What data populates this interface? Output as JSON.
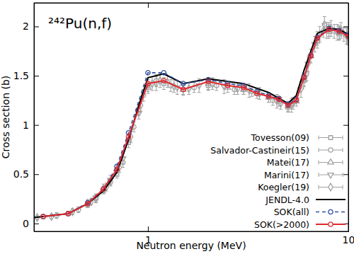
{
  "chart_data": {
    "type": "scatter",
    "title": "²⁴²Pu(n,f)",
    "x_label": "Neutron energy (MeV)",
    "y_label": "Cross section (b)",
    "log": "x",
    "legend": "lower right",
    "xlim": [
      0.27,
      10
    ],
    "ylim": [
      -0.08,
      2.24
    ],
    "xticks": [
      1,
      10
    ],
    "yticks": [
      0,
      0.5,
      1,
      1.5,
      2
    ],
    "series": [
      {
        "name": "Tovesson(09)",
        "color": "#a0a0a0",
        "type": "scatter",
        "marker": "square",
        "line_style": "none",
        "x": [
          0.3,
          0.4,
          0.5,
          0.6,
          0.7,
          0.8,
          0.9,
          1.0,
          1.2,
          1.5,
          2,
          3,
          4,
          5,
          6,
          7,
          8,
          9,
          10
        ],
        "values": [
          0.07,
          0.1,
          0.19,
          0.33,
          0.5,
          0.82,
          1.15,
          1.4,
          1.42,
          1.36,
          1.4,
          1.36,
          1.28,
          1.18,
          1.45,
          1.85,
          1.95,
          1.93,
          1.88
        ],
        "errors": [
          0.02,
          0.02,
          0.03,
          0.03,
          0.04,
          0.05,
          0.05,
          0.06,
          0.06,
          0.05,
          0.05,
          0.05,
          0.05,
          0.05,
          0.06,
          0.07,
          0.07,
          0.07,
          0.07
        ]
      },
      {
        "name": "Salvador-Castineir(15)",
        "color": "#a0a0a0",
        "type": "scatter",
        "marker": "circle",
        "line_style": "none",
        "x": [
          0.35,
          0.45,
          0.55,
          0.65,
          0.75,
          0.85,
          0.95,
          1.1,
          1.3,
          1.7,
          2.2,
          2.7,
          3.3,
          4.2
        ],
        "values": [
          0.08,
          0.14,
          0.25,
          0.42,
          0.62,
          0.98,
          1.3,
          1.45,
          1.4,
          1.38,
          1.4,
          1.36,
          1.34,
          1.25
        ],
        "errors": [
          0.03,
          0.03,
          0.04,
          0.04,
          0.05,
          0.05,
          0.06,
          0.06,
          0.06,
          0.05,
          0.05,
          0.05,
          0.05,
          0.05
        ]
      },
      {
        "name": "Matei(17)",
        "color": "#a0a0a0",
        "type": "scatter",
        "marker": "triangle",
        "line_style": "none",
        "x": [
          0.5,
          0.6,
          0.7,
          0.8,
          1.0,
          1.25,
          1.5,
          2,
          2.5,
          3,
          3.5,
          4,
          4.5,
          5,
          5.5,
          6,
          6.5,
          7,
          7.5,
          8,
          8.5,
          9,
          9.5
        ],
        "values": [
          0.21,
          0.36,
          0.55,
          0.85,
          1.38,
          1.44,
          1.36,
          1.42,
          1.38,
          1.36,
          1.32,
          1.28,
          1.24,
          1.19,
          1.24,
          1.46,
          1.7,
          1.88,
          1.96,
          1.97,
          1.95,
          1.94,
          1.92
        ],
        "errors": [
          0.03,
          0.04,
          0.04,
          0.05,
          0.06,
          0.06,
          0.06,
          0.06,
          0.05,
          0.05,
          0.05,
          0.05,
          0.05,
          0.05,
          0.05,
          0.06,
          0.07,
          0.07,
          0.07,
          0.07,
          0.07,
          0.07,
          0.07
        ]
      },
      {
        "name": "Marini(17)",
        "color": "#a0a0a0",
        "type": "scatter",
        "marker": "triangle-down",
        "line_style": "none",
        "x": [
          0.55,
          0.65,
          0.75,
          0.9,
          1.1,
          1.4,
          1.8,
          2.4,
          3.2,
          4.4,
          5.2,
          5.8,
          6.3,
          6.8,
          7.8,
          8.8,
          9.8
        ],
        "values": [
          0.26,
          0.44,
          0.66,
          1.12,
          1.42,
          1.38,
          1.4,
          1.39,
          1.35,
          1.24,
          1.2,
          1.36,
          1.62,
          1.82,
          1.96,
          1.94,
          1.9
        ],
        "errors": [
          0.04,
          0.05,
          0.05,
          0.06,
          0.07,
          0.07,
          0.07,
          0.07,
          0.07,
          0.07,
          0.07,
          0.08,
          0.08,
          0.08,
          0.08,
          0.08,
          0.08
        ]
      },
      {
        "name": "Koegler(19)",
        "color": "#a0a0a0",
        "type": "scatter",
        "marker": "diamond",
        "line_style": "none",
        "x": [
          0.28,
          0.33,
          0.42,
          0.52,
          0.62,
          0.72,
          0.82,
          0.92,
          1.05,
          1.15,
          1.35,
          1.6,
          2.1,
          2.8,
          3.6,
          4.6,
          5.3,
          6.2,
          7.2,
          7.6,
          8.2,
          9.2,
          9.9
        ],
        "values": [
          0.06,
          0.07,
          0.12,
          0.22,
          0.37,
          0.57,
          0.88,
          1.2,
          1.42,
          1.45,
          1.39,
          1.37,
          1.42,
          1.37,
          1.32,
          1.22,
          1.22,
          1.52,
          1.92,
          2.02,
          1.98,
          1.96,
          1.91
        ],
        "errors": [
          0.02,
          0.02,
          0.03,
          0.03,
          0.04,
          0.05,
          0.06,
          0.06,
          0.07,
          0.07,
          0.06,
          0.06,
          0.06,
          0.06,
          0.06,
          0.06,
          0.06,
          0.07,
          0.08,
          0.08,
          0.08,
          0.08,
          0.08
        ]
      },
      {
        "name": "JENDL-4.0",
        "color": "#000000",
        "type": "line",
        "marker": "none",
        "line_style": "solid",
        "x": [
          0.27,
          0.3,
          0.4,
          0.5,
          0.6,
          0.7,
          0.8,
          0.9,
          1.0,
          1.2,
          1.5,
          2,
          3,
          4,
          5,
          5.5,
          6,
          6.5,
          7,
          8,
          9,
          10
        ],
        "values": [
          0.06,
          0.07,
          0.1,
          0.2,
          0.33,
          0.52,
          0.85,
          1.2,
          1.48,
          1.52,
          1.42,
          1.47,
          1.42,
          1.33,
          1.22,
          1.3,
          1.55,
          1.75,
          1.93,
          1.98,
          1.97,
          1.92
        ]
      },
      {
        "name": "SOK(all)",
        "color": "#2c4f9e",
        "type": "line",
        "marker": "circle",
        "line_style": "dashed",
        "x": [
          0.3,
          0.4,
          0.5,
          0.6,
          0.7,
          0.8,
          1.0,
          1.2,
          1.5,
          2,
          2.5,
          3,
          3.5,
          4,
          4.5,
          5,
          5.5,
          6,
          6.5,
          7,
          8,
          9,
          10
        ],
        "values": [
          0.07,
          0.1,
          0.21,
          0.35,
          0.58,
          0.92,
          1.53,
          1.53,
          1.42,
          1.46,
          1.42,
          1.4,
          1.34,
          1.3,
          1.27,
          1.21,
          1.26,
          1.49,
          1.71,
          1.89,
          1.98,
          1.96,
          1.91
        ]
      },
      {
        "name": "SOK(>2000)",
        "color": "#e0282e",
        "type": "line",
        "marker": "circle",
        "line_style": "solid",
        "x": [
          0.3,
          0.4,
          0.5,
          0.6,
          0.7,
          0.8,
          1.0,
          1.2,
          1.5,
          2,
          2.5,
          3,
          3.5,
          4,
          4.5,
          5,
          5.5,
          6,
          6.5,
          7,
          8,
          9,
          10
        ],
        "values": [
          0.07,
          0.1,
          0.2,
          0.35,
          0.55,
          0.88,
          1.42,
          1.45,
          1.36,
          1.44,
          1.4,
          1.38,
          1.32,
          1.29,
          1.26,
          1.2,
          1.25,
          1.48,
          1.7,
          1.88,
          1.97,
          1.95,
          1.9
        ]
      }
    ]
  }
}
